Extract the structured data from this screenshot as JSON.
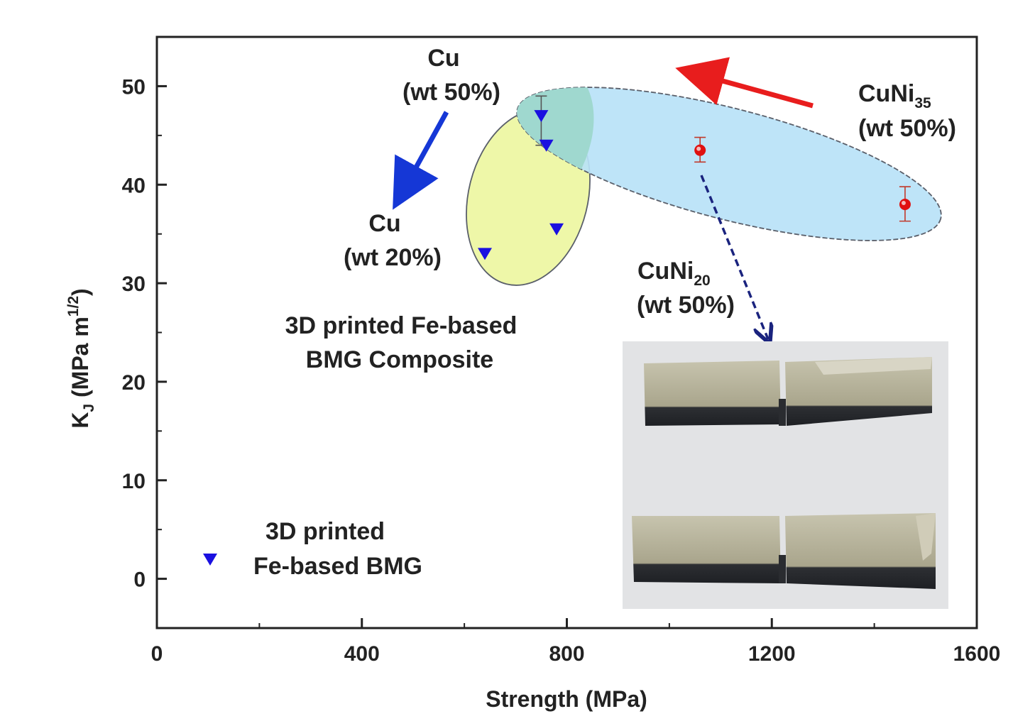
{
  "chart_data": {
    "type": "scatter",
    "xlabel": "Strength (MPa)",
    "ylabel_main": "K",
    "ylabel_sub": "J",
    "ylabel_unit": "(MPa m",
    "ylabel_exp": "1/2",
    "ylabel_close": ")",
    "xlim": [
      0,
      1600
    ],
    "ylim": [
      -5,
      55
    ],
    "x_ticks": [
      0,
      400,
      800,
      1200,
      1600
    ],
    "y_ticks": [
      0,
      10,
      20,
      30,
      40,
      50
    ],
    "grid": false,
    "series": [
      {
        "name": "3D printed Fe-based BMG",
        "marker": "triangle-down",
        "color": "#1a10e0",
        "points": [
          {
            "x": 750,
            "y": 47
          },
          {
            "x": 760,
            "y": 44
          },
          {
            "x": 640,
            "y": 33
          },
          {
            "x": 780,
            "y": 35.5
          }
        ],
        "error_bars": [
          {
            "x": 750,
            "ylow": 44,
            "yhigh": 49
          }
        ]
      },
      {
        "marker": "circle",
        "color": "#e01010",
        "points": [
          {
            "x": 1060,
            "y": 43.5
          },
          {
            "x": 1460,
            "y": 38
          }
        ],
        "error_bars": [
          {
            "x": 1060,
            "ylow": 42.3,
            "yhigh": 44.8
          },
          {
            "x": 1460,
            "ylow": 36.3,
            "yhigh": 39.8
          }
        ]
      }
    ],
    "legend": {
      "placement": "bottom-left",
      "line1": "3D printed",
      "line2": "Fe-based BMG"
    },
    "annotations": {
      "cu50_line1": "Cu",
      "cu50_line2": "(wt 50%)",
      "cu20_line1": "Cu",
      "cu20_line2": "(wt 20%)",
      "cuni35_main": "CuNi",
      "cuni35_sub": "35",
      "cuni35_line2": "(wt 50%)",
      "cuni20_main": "CuNi",
      "cuni20_sub": "20",
      "cuni20_line2": "(wt 50%)",
      "composite_line1": "3D printed Fe-based",
      "composite_line2": "BMG Composite"
    },
    "regions": [
      {
        "label": "Cu composite region",
        "color": "#eef7a8"
      },
      {
        "label": "CuNi composite region",
        "color": "#b8e2f7"
      }
    ],
    "arrow_colors": {
      "cu": "#1537d6",
      "cuni": "#e81d1d",
      "inset": "#1a237e"
    },
    "inset_photo": {
      "description_shown": false,
      "background": "#e2e3e5",
      "sample_color": "#b7b39a"
    }
  }
}
